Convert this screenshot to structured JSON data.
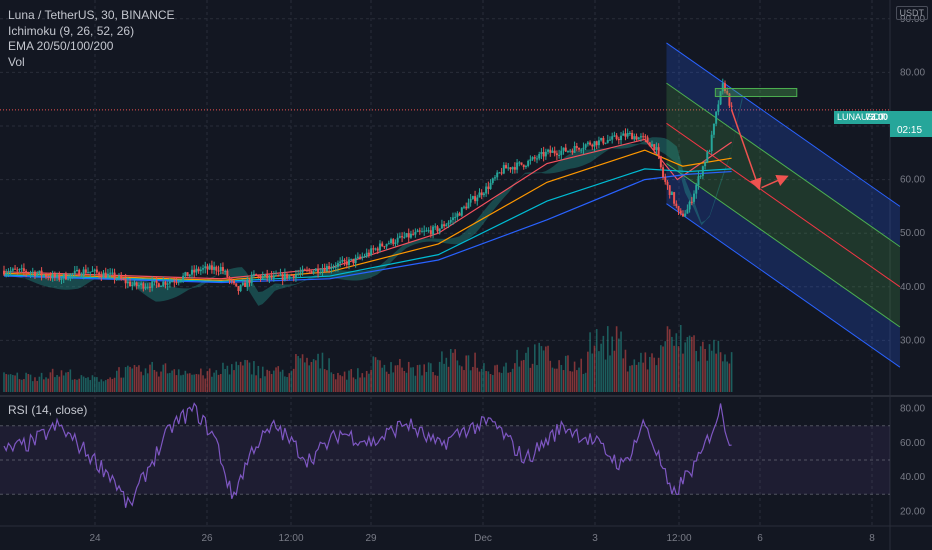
{
  "header": {
    "title": "Luna / TetherUS, 30, BINANCE",
    "indicators": [
      "Ichimoku (9, 26, 52, 26)",
      "EMA 20/50/100/200",
      "Vol"
    ],
    "currency_button": "USDT"
  },
  "rsi_panel": {
    "title": "RSI (14, close)"
  },
  "last_price": {
    "symbol": "LUNAUSDT",
    "value": "73.00",
    "countdown": "02:15"
  },
  "colors": {
    "background": "#131722",
    "up": "#26a69a",
    "down": "#ef5350",
    "rsi_line": "#7e57c2",
    "channel_outer": "#2962ff",
    "channel_inner": "#4caf50",
    "channel_mid": "#f23645",
    "target_box": "#4caf50"
  },
  "chart_data": [
    {
      "type": "candlestick",
      "title": "Luna / TetherUS, 30, BINANCE",
      "x_tick_labels": [
        "24",
        "26",
        "12:00",
        "29",
        "Dec",
        "3",
        "12:00",
        "6",
        "8"
      ],
      "y_ticks": [
        30.0,
        40.0,
        50.0,
        60.0,
        70.0,
        80.0,
        90.0
      ],
      "ylim": [
        20,
        95
      ],
      "grid": true,
      "close_series": [
        {
          "x": 0.0,
          "close": 43.0
        },
        {
          "x": 0.5,
          "close": 42.8
        },
        {
          "x": 1.0,
          "close": 41.6
        },
        {
          "x": 1.5,
          "close": 43.0
        },
        {
          "x": 2.0,
          "close": 42.0
        },
        {
          "x": 2.4,
          "close": 40.2
        },
        {
          "x": 2.8,
          "close": 40.5
        },
        {
          "x": 3.2,
          "close": 41.4
        },
        {
          "x": 3.6,
          "close": 43.2
        },
        {
          "x": 4.0,
          "close": 43.5
        },
        {
          "x": 4.3,
          "close": 39.2
        },
        {
          "x": 4.6,
          "close": 42.0
        },
        {
          "x": 5.0,
          "close": 41.6
        },
        {
          "x": 5.5,
          "close": 42.6
        },
        {
          "x": 6.0,
          "close": 43.8
        },
        {
          "x": 6.5,
          "close": 45.0
        },
        {
          "x": 7.0,
          "close": 48.0
        },
        {
          "x": 7.5,
          "close": 49.6
        },
        {
          "x": 8.0,
          "close": 50.8
        },
        {
          "x": 8.3,
          "close": 53.0
        },
        {
          "x": 8.6,
          "close": 56.0
        },
        {
          "x": 8.9,
          "close": 58.5
        },
        {
          "x": 9.2,
          "close": 62.0
        },
        {
          "x": 9.6,
          "close": 63.0
        },
        {
          "x": 10.0,
          "close": 65.0
        },
        {
          "x": 10.4,
          "close": 65.5
        },
        {
          "x": 10.8,
          "close": 66.8
        },
        {
          "x": 11.2,
          "close": 67.5
        },
        {
          "x": 11.5,
          "close": 68.4
        },
        {
          "x": 11.8,
          "close": 67.5
        },
        {
          "x": 12.0,
          "close": 66.0
        },
        {
          "x": 12.15,
          "close": 60.0
        },
        {
          "x": 12.3,
          "close": 57.0
        },
        {
          "x": 12.45,
          "close": 53.0
        },
        {
          "x": 12.6,
          "close": 54.5
        },
        {
          "x": 12.8,
          "close": 60.5
        },
        {
          "x": 13.0,
          "close": 66.0
        },
        {
          "x": 13.15,
          "close": 74.0
        },
        {
          "x": 13.25,
          "close": 78.0
        },
        {
          "x": 13.4,
          "close": 73.0
        }
      ],
      "ema": [
        {
          "name": "EMA 20",
          "color": "#f7525f",
          "values": [
            {
              "x": 0.0,
              "y": 42.8
            },
            {
              "x": 4.0,
              "y": 41.5
            },
            {
              "x": 6.0,
              "y": 43.5
            },
            {
              "x": 8.0,
              "y": 50.0
            },
            {
              "x": 10.0,
              "y": 63.0
            },
            {
              "x": 11.8,
              "y": 67.5
            },
            {
              "x": 12.4,
              "y": 60.0
            },
            {
              "x": 13.4,
              "y": 67.0
            }
          ]
        },
        {
          "name": "EMA 50",
          "color": "#ff9800",
          "values": [
            {
              "x": 0.0,
              "y": 42.5
            },
            {
              "x": 4.0,
              "y": 41.2
            },
            {
              "x": 6.0,
              "y": 42.8
            },
            {
              "x": 8.0,
              "y": 48.0
            },
            {
              "x": 10.0,
              "y": 59.5
            },
            {
              "x": 11.8,
              "y": 65.5
            },
            {
              "x": 12.5,
              "y": 62.5
            },
            {
              "x": 13.4,
              "y": 64.0
            }
          ]
        },
        {
          "name": "EMA 100",
          "color": "#00bcd4",
          "values": [
            {
              "x": 0.0,
              "y": 42.2
            },
            {
              "x": 4.0,
              "y": 41.0
            },
            {
              "x": 6.0,
              "y": 42.0
            },
            {
              "x": 8.0,
              "y": 46.0
            },
            {
              "x": 10.0,
              "y": 56.0
            },
            {
              "x": 11.8,
              "y": 62.0
            },
            {
              "x": 12.6,
              "y": 61.5
            },
            {
              "x": 13.4,
              "y": 62.0
            }
          ]
        },
        {
          "name": "EMA 200",
          "color": "#2962ff",
          "values": [
            {
              "x": 0.0,
              "y": 42.0
            },
            {
              "x": 4.0,
              "y": 40.8
            },
            {
              "x": 6.0,
              "y": 41.5
            },
            {
              "x": 8.0,
              "y": 45.0
            },
            {
              "x": 10.0,
              "y": 52.5
            },
            {
              "x": 11.8,
              "y": 60.0
            },
            {
              "x": 12.6,
              "y": 61.0
            },
            {
              "x": 13.4,
              "y": 61.5
            }
          ]
        }
      ],
      "regression_channel": {
        "start": {
          "x": 12.2,
          "y": 70.5
        },
        "end": {
          "x": 16.5,
          "y": 40.0
        },
        "offsets": [
          -15,
          -7.5,
          0,
          7.5,
          15
        ]
      },
      "target_box": {
        "x0": 13.1,
        "x1": 14.6,
        "y0": 75.5,
        "y1": 77.0
      },
      "projection_arrows": [
        {
          "from": {
            "x": 13.4,
            "y": 73.0
          },
          "to": {
            "x": 13.9,
            "y": 58.5
          }
        },
        {
          "from": {
            "x": 13.95,
            "y": 58.5
          },
          "to": {
            "x": 14.4,
            "y": 60.5
          }
        }
      ],
      "last_price": 73.0
    },
    {
      "type": "bar",
      "title": "Vol",
      "series_note": "volume histogram",
      "values_relative": [
        0.25,
        0.3,
        0.2,
        0.35,
        0.4,
        0.3,
        0.45,
        0.35,
        0.55,
        0.3,
        0.5,
        0.4,
        0.6,
        0.45,
        0.7,
        0.5,
        0.95,
        0.6,
        1.0,
        0.8
      ]
    },
    {
      "type": "line",
      "title": "RSI (14, close)",
      "y_ticks": [
        20.0,
        40.0,
        60.0,
        80.0
      ],
      "ylim": [
        15,
        85
      ],
      "band": [
        30,
        70
      ],
      "values": [
        {
          "x": 0.0,
          "y": 55
        },
        {
          "x": 0.5,
          "y": 60
        },
        {
          "x": 1.0,
          "y": 70
        },
        {
          "x": 1.5,
          "y": 55
        },
        {
          "x": 2.0,
          "y": 40
        },
        {
          "x": 2.3,
          "y": 22
        },
        {
          "x": 2.7,
          "y": 48
        },
        {
          "x": 3.1,
          "y": 70
        },
        {
          "x": 3.5,
          "y": 80
        },
        {
          "x": 3.9,
          "y": 62
        },
        {
          "x": 4.2,
          "y": 28
        },
        {
          "x": 4.6,
          "y": 58
        },
        {
          "x": 5.0,
          "y": 70
        },
        {
          "x": 5.6,
          "y": 50
        },
        {
          "x": 6.2,
          "y": 66
        },
        {
          "x": 6.8,
          "y": 60
        },
        {
          "x": 7.4,
          "y": 72
        },
        {
          "x": 8.0,
          "y": 58
        },
        {
          "x": 8.5,
          "y": 68
        },
        {
          "x": 9.0,
          "y": 72
        },
        {
          "x": 9.6,
          "y": 50
        },
        {
          "x": 10.3,
          "y": 70
        },
        {
          "x": 10.9,
          "y": 60
        },
        {
          "x": 11.4,
          "y": 46
        },
        {
          "x": 11.8,
          "y": 72
        },
        {
          "x": 12.1,
          "y": 48
        },
        {
          "x": 12.3,
          "y": 28
        },
        {
          "x": 12.5,
          "y": 38
        },
        {
          "x": 12.8,
          "y": 50
        },
        {
          "x": 13.0,
          "y": 65
        },
        {
          "x": 13.2,
          "y": 80
        },
        {
          "x": 13.35,
          "y": 62
        }
      ]
    }
  ]
}
